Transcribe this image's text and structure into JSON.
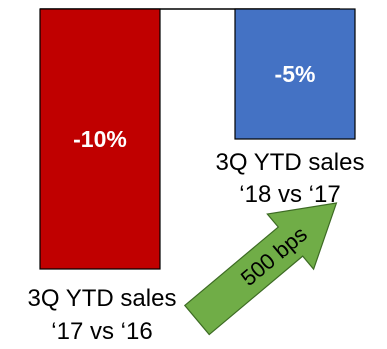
{
  "chart_data": {
    "type": "bar",
    "categories": [
      [
        "3Q YTD sales",
        "‘17 vs ‘16"
      ],
      [
        "3Q YTD sales",
        "‘18 vs ‘17"
      ]
    ],
    "values": [
      -10,
      -5
    ],
    "data_labels": [
      "-10%",
      "-5%"
    ],
    "ylim": [
      -11,
      0
    ],
    "colors": {
      "bar_1": "#C00000",
      "bar_2": "#4472C4",
      "bar_outline": "#000000",
      "arrow": "#70AD47",
      "arrow_outline": "#3D6B24"
    },
    "annotation": {
      "label": "500 bps",
      "icon": "up-right-arrow-icon"
    }
  }
}
